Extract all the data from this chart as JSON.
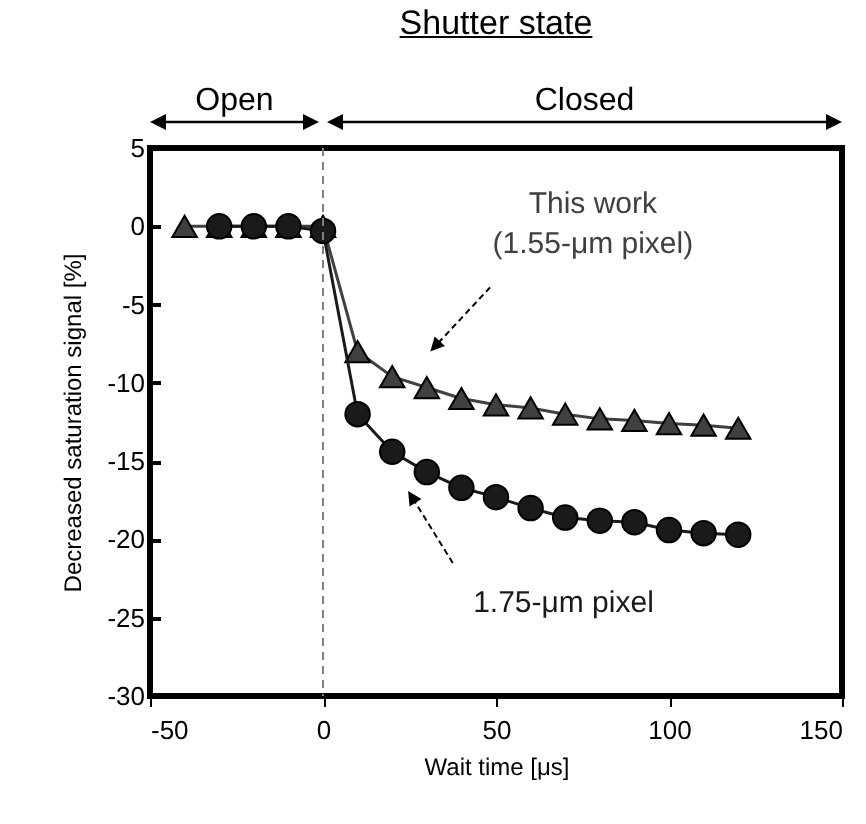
{
  "chart_data": {
    "type": "line",
    "title": "Shutter state",
    "xlabel": "Wait time [μs]",
    "ylabel": "Decreased saturation signal [%]",
    "annotations": [
      "Open",
      "Closed"
    ],
    "series": [
      {
        "name": "This work\n(1.55-μm pixel)",
        "color": "#404040",
        "marker": "triangle",
        "x": [
          -40,
          -30,
          -20,
          -10,
          0,
          10,
          20,
          30,
          40,
          50,
          60,
          70,
          80,
          90,
          100,
          110,
          120
        ],
        "values": [
          0,
          0,
          0,
          0,
          0,
          -8.0,
          -9.6,
          -10.3,
          -11.0,
          -11.4,
          -11.6,
          -12.0,
          -12.3,
          -12.4,
          -12.6,
          -12.7,
          -12.9
        ]
      },
      {
        "name": "1.75-μm pixel",
        "color": "#1a1a1a",
        "marker": "circle",
        "x": [
          -30,
          -20,
          -10,
          0,
          10,
          20,
          30,
          40,
          50,
          60,
          70,
          80,
          90,
          100,
          110,
          120
        ],
        "values": [
          0,
          0,
          0,
          -0.3,
          -12.0,
          -14.4,
          -15.7,
          -16.7,
          -17.3,
          -18.0,
          -18.6,
          -18.8,
          -18.9,
          -19.4,
          -19.6,
          -19.7
        ]
      }
    ],
    "ref_lines": [
      {
        "axis": "x",
        "value": 0,
        "color": "#808080",
        "line_style": "dashed"
      }
    ],
    "xlim": [
      -50,
      150
    ],
    "xticks": [
      -50,
      0,
      50,
      100,
      150
    ],
    "ylim": [
      -30,
      5
    ],
    "yticks": [
      -30,
      -25,
      -20,
      -15,
      -10,
      -5,
      0,
      5
    ],
    "grid": false
  }
}
